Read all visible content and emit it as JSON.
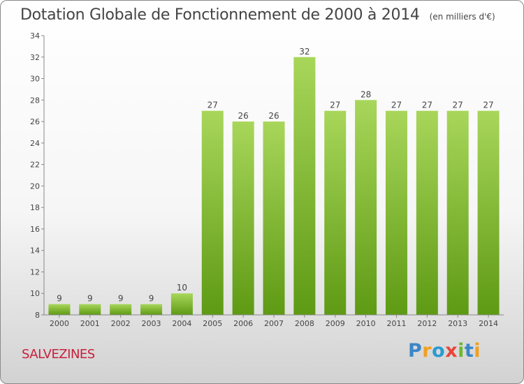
{
  "header": {
    "title": "Dotation Globale de Fonctionnement de 2000 à 2014",
    "subtitle": "(en milliers d'€)"
  },
  "footer": {
    "commune": "SALVEZINES",
    "logo": "Proxiti"
  },
  "colors": {
    "bar_top": "#a8d65a",
    "bar_bottom": "#5e9a14",
    "commune_text": "#c8203a"
  },
  "chart_data": {
    "type": "bar",
    "title": "Dotation Globale de Fonctionnement de 2000 à 2014",
    "subtitle": "(en milliers d'€)",
    "categories": [
      "2000",
      "2001",
      "2002",
      "2003",
      "2004",
      "2005",
      "2006",
      "2007",
      "2008",
      "2009",
      "2010",
      "2011",
      "2012",
      "2013",
      "2014"
    ],
    "values": [
      9,
      9,
      9,
      9,
      10,
      27,
      26,
      26,
      32,
      27,
      28,
      27,
      27,
      27,
      27
    ],
    "ylim": [
      8,
      34
    ],
    "yticks": [
      8,
      10,
      12,
      14,
      16,
      18,
      20,
      22,
      24,
      26,
      28,
      30,
      32,
      34
    ],
    "grid": false,
    "data_labels": true
  }
}
